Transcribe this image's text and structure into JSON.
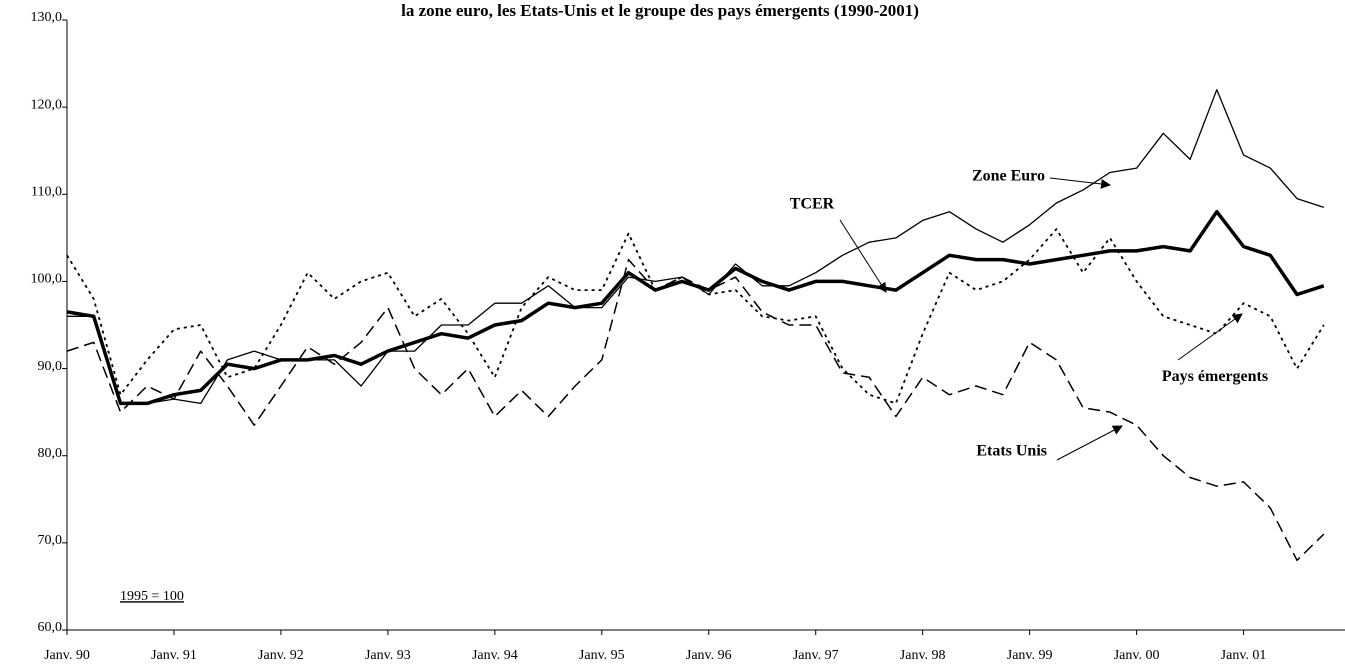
{
  "chart_data": {
    "type": "line",
    "title": "la zone euro, les Etats-Unis et le groupe des pays émergents (1990-2001)",
    "note": "1995 = 100",
    "categories": [
      "Janv. 90",
      null,
      null,
      null,
      "Janv. 91",
      null,
      null,
      null,
      "Janv. 92",
      null,
      null,
      null,
      "Janv. 93",
      null,
      null,
      null,
      "Janv. 94",
      null,
      null,
      null,
      "Janv. 95",
      null,
      null,
      null,
      "Janv. 96",
      null,
      null,
      null,
      "Janv. 97",
      null,
      null,
      null,
      "Janv. 98",
      null,
      null,
      null,
      "Janv. 99",
      null,
      null,
      null,
      "Janv. 00",
      null,
      null,
      null,
      "Janv. 01",
      null,
      null,
      null
    ],
    "series": [
      {
        "name": "TCER",
        "color": "#000000",
        "line_style": "bold",
        "values": [
          96.5,
          96,
          86,
          86,
          87,
          87.5,
          90.5,
          90,
          91,
          91,
          91.5,
          90.5,
          92,
          93,
          94,
          93.5,
          95,
          95.5,
          97.5,
          97,
          97.5,
          101,
          99,
          100,
          99,
          101.5,
          100,
          99,
          100,
          100,
          99.5,
          99,
          101,
          103,
          102.5,
          102.5,
          102,
          102.5,
          103,
          103.5,
          103.5,
          104,
          103.5,
          108,
          104,
          103,
          98.5,
          99.5
        ]
      },
      {
        "name": "Zone Euro",
        "color": "#000000",
        "line_style": "solid",
        "values": [
          96,
          96,
          86,
          86,
          86.5,
          86,
          91,
          92,
          91,
          91,
          91,
          88,
          92,
          92,
          95,
          95,
          97.5,
          97.5,
          99.5,
          97,
          97,
          100.5,
          100,
          100.5,
          98.5,
          102,
          99.5,
          99.5,
          101,
          103,
          104.5,
          105,
          107,
          108,
          106,
          104.5,
          106.5,
          109,
          110.5,
          112.5,
          113,
          117,
          114,
          122,
          114.5,
          113,
          109.5,
          108.5
        ]
      },
      {
        "name": "Pays émergents",
        "color": "#000000",
        "line_style": "dotted",
        "values": [
          103,
          98,
          87,
          91,
          94.5,
          95,
          89,
          90,
          95,
          101,
          98,
          100,
          101,
          96,
          98,
          94,
          89,
          97,
          100.5,
          99,
          99,
          105.5,
          99,
          100.5,
          98.5,
          99,
          96,
          95.5,
          96,
          90,
          87,
          86,
          94,
          101,
          99,
          100,
          102.5,
          106,
          101,
          105,
          100,
          96,
          95,
          94,
          97.5,
          96,
          90,
          95
        ]
      },
      {
        "name": "Etats Unis",
        "color": "#000000",
        "line_style": "dashed",
        "values": [
          92,
          93,
          85,
          88,
          86.5,
          92,
          88,
          83.5,
          88,
          92.5,
          90.5,
          93,
          97,
          90,
          87,
          90,
          84.5,
          87.5,
          84.5,
          88,
          91,
          102.5,
          99,
          100.5,
          99,
          100.5,
          96.5,
          95,
          95,
          89.5,
          89,
          84.5,
          89,
          87,
          88,
          87,
          93,
          91,
          85.5,
          85,
          83.5,
          80,
          77.5,
          76.5,
          77,
          74,
          68,
          71
        ]
      }
    ],
    "ylim": [
      60,
      130
    ],
    "yticks": [
      {
        "value": 60,
        "label": "60,0"
      },
      {
        "value": 70,
        "label": "70,0"
      },
      {
        "value": 80,
        "label": "80,0"
      },
      {
        "value": 90,
        "label": "90,0"
      },
      {
        "value": 100,
        "label": "100,0"
      },
      {
        "value": 110,
        "label": "110,0"
      },
      {
        "value": 120,
        "label": "120,0"
      },
      {
        "value": 130,
        "label": "130,0"
      }
    ],
    "grid": false
  }
}
